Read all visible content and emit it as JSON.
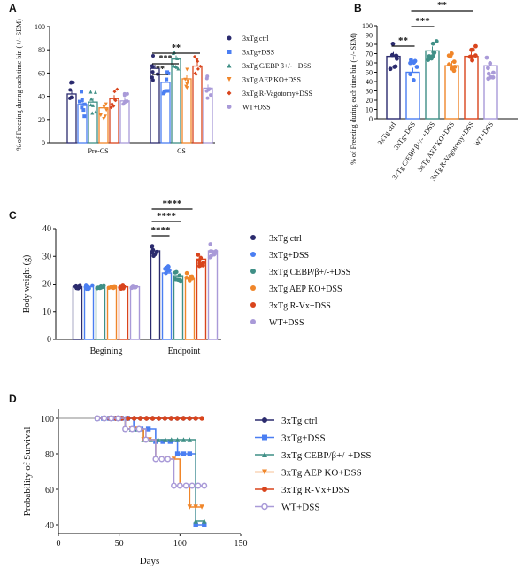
{
  "figure": {
    "panels": [
      "A",
      "B",
      "C",
      "D"
    ]
  },
  "colors": {
    "ctrl": "#2b2b6e",
    "dss": "#4a7ef2",
    "cebp": "#3f8f86",
    "aep": "#f0862a",
    "rvago": "#d9441c",
    "wt": "#a99ad8"
  },
  "chart_data": [
    {
      "panel": "A",
      "type": "bar",
      "ylabel": "% of Freezing during each time bin (+/- SEM)",
      "ylim": [
        0,
        100
      ],
      "yticks": [
        0,
        20,
        40,
        60,
        80,
        100
      ],
      "categories": [
        "Pre-CS",
        "CS"
      ],
      "series": [
        {
          "name": "3xTg ctrl",
          "key": "ctrl",
          "marker": "circle",
          "values": [
            42,
            64
          ]
        },
        {
          "name": "3xTg+DSS",
          "key": "dss",
          "marker": "square",
          "values": [
            33,
            52
          ]
        },
        {
          "name": "3xTg C/EBP β+/- +DSS",
          "key": "cebp",
          "marker": "triangle",
          "values": [
            35,
            72
          ]
        },
        {
          "name": "3xTg AEP KO+DSS",
          "key": "aep",
          "marker": "tri-down",
          "values": [
            30,
            55
          ]
        },
        {
          "name": "3xTg R-Vagotomy+DSS",
          "key": "rvago",
          "marker": "diamond",
          "values": [
            38,
            66
          ]
        },
        {
          "name": "WT+DSS",
          "key": "wt",
          "marker": "circle",
          "values": [
            36,
            47
          ]
        }
      ],
      "significance": [
        {
          "label": "**",
          "from": 0,
          "to": 1
        },
        {
          "label": "***",
          "from": 0,
          "to": 2
        },
        {
          "label": "**",
          "from": 0,
          "to": 4
        }
      ]
    },
    {
      "panel": "B",
      "type": "bar",
      "ylabel": "% of Freezing during each time bin (+/- SEM)",
      "ylim": [
        0,
        100
      ],
      "yticks": [
        0,
        10,
        20,
        30,
        40,
        50,
        60,
        70,
        80,
        90,
        100
      ],
      "categories": [
        "3xTg ctrl",
        "3xTg+DSS",
        "3xTg C/EBP β+/- +DSS",
        "3xTg AEP KO+DSS",
        "3xTg R-Vagotomy+DSS",
        "WT+DSS"
      ],
      "values": [
        67,
        50,
        73,
        57,
        67,
        57
      ],
      "significance": [
        {
          "label": "**",
          "from": 0,
          "to": 1
        },
        {
          "label": "***",
          "from": 1,
          "to": 2
        },
        {
          "label": "**",
          "from": 1,
          "to": 4
        }
      ]
    },
    {
      "panel": "C",
      "type": "bar",
      "ylabel": "Body weight (g)",
      "ylim": [
        0,
        40
      ],
      "yticks": [
        0,
        10,
        20,
        30,
        40
      ],
      "categories": [
        "Begining",
        "Endpoint"
      ],
      "series": [
        {
          "name": "3xTg ctrl",
          "key": "ctrl",
          "marker": "circle",
          "values": [
            19,
            32
          ]
        },
        {
          "name": "3xTg+DSS",
          "key": "dss",
          "marker": "circle",
          "values": [
            19,
            24
          ]
        },
        {
          "name": "3xTg CEBP/β+/-+DSS",
          "key": "cebp",
          "marker": "circle",
          "values": [
            19,
            23
          ]
        },
        {
          "name": "3xTg AEP KO+DSS",
          "key": "aep",
          "marker": "circle",
          "values": [
            18.5,
            22
          ]
        },
        {
          "name": "3xTg R-Vx+DSS",
          "key": "rvago",
          "marker": "circle",
          "values": [
            19,
            29
          ]
        },
        {
          "name": "WT+DSS",
          "key": "wt",
          "marker": "circle",
          "values": [
            19,
            32
          ]
        }
      ],
      "significance": [
        {
          "label": "****",
          "from": 0,
          "to": 1
        },
        {
          "label": "****",
          "from": 0,
          "to": 2
        },
        {
          "label": "****",
          "from": 0,
          "to": 3
        }
      ]
    },
    {
      "panel": "D",
      "type": "line",
      "xlabel": "Days",
      "ylabel": "Probability of Survival",
      "xlim": [
        0,
        150
      ],
      "ylim": [
        35,
        105
      ],
      "xticks": [
        0,
        50,
        100,
        150
      ],
      "yticks": [
        40,
        60,
        80,
        100
      ],
      "series": [
        {
          "name": "3xTg ctrl",
          "key": "ctrl",
          "marker": "circle",
          "x": [
            32,
            113
          ],
          "y": [
            100,
            100
          ]
        },
        {
          "name": "3xTg+DSS",
          "key": "dss",
          "marker": "square",
          "x": [
            32,
            62,
            80,
            98,
            113,
            120
          ],
          "y": [
            100,
            94,
            87,
            80,
            40,
            40
          ]
        },
        {
          "name": "3xTg CEBP/β+/-+DSS",
          "key": "cebp",
          "marker": "triangle",
          "x": [
            32,
            55,
            70,
            88,
            113,
            120
          ],
          "y": [
            100,
            94,
            88,
            88,
            42,
            42
          ]
        },
        {
          "name": "3xTg AEP KO+DSS",
          "key": "aep",
          "marker": "tri-down",
          "x": [
            32,
            55,
            70,
            80,
            100,
            108,
            118
          ],
          "y": [
            100,
            94,
            88,
            77,
            62,
            50,
            50
          ]
        },
        {
          "name": "3xTg R-Vx+DSS",
          "key": "rvago",
          "marker": "circle",
          "x": [
            32,
            118
          ],
          "y": [
            100,
            100
          ]
        },
        {
          "name": "WT+DSS",
          "key": "wt",
          "marker": "circle",
          "x": [
            32,
            55,
            72,
            80,
            95,
            120
          ],
          "y": [
            100,
            94,
            88,
            77,
            62,
            62
          ]
        }
      ]
    }
  ]
}
